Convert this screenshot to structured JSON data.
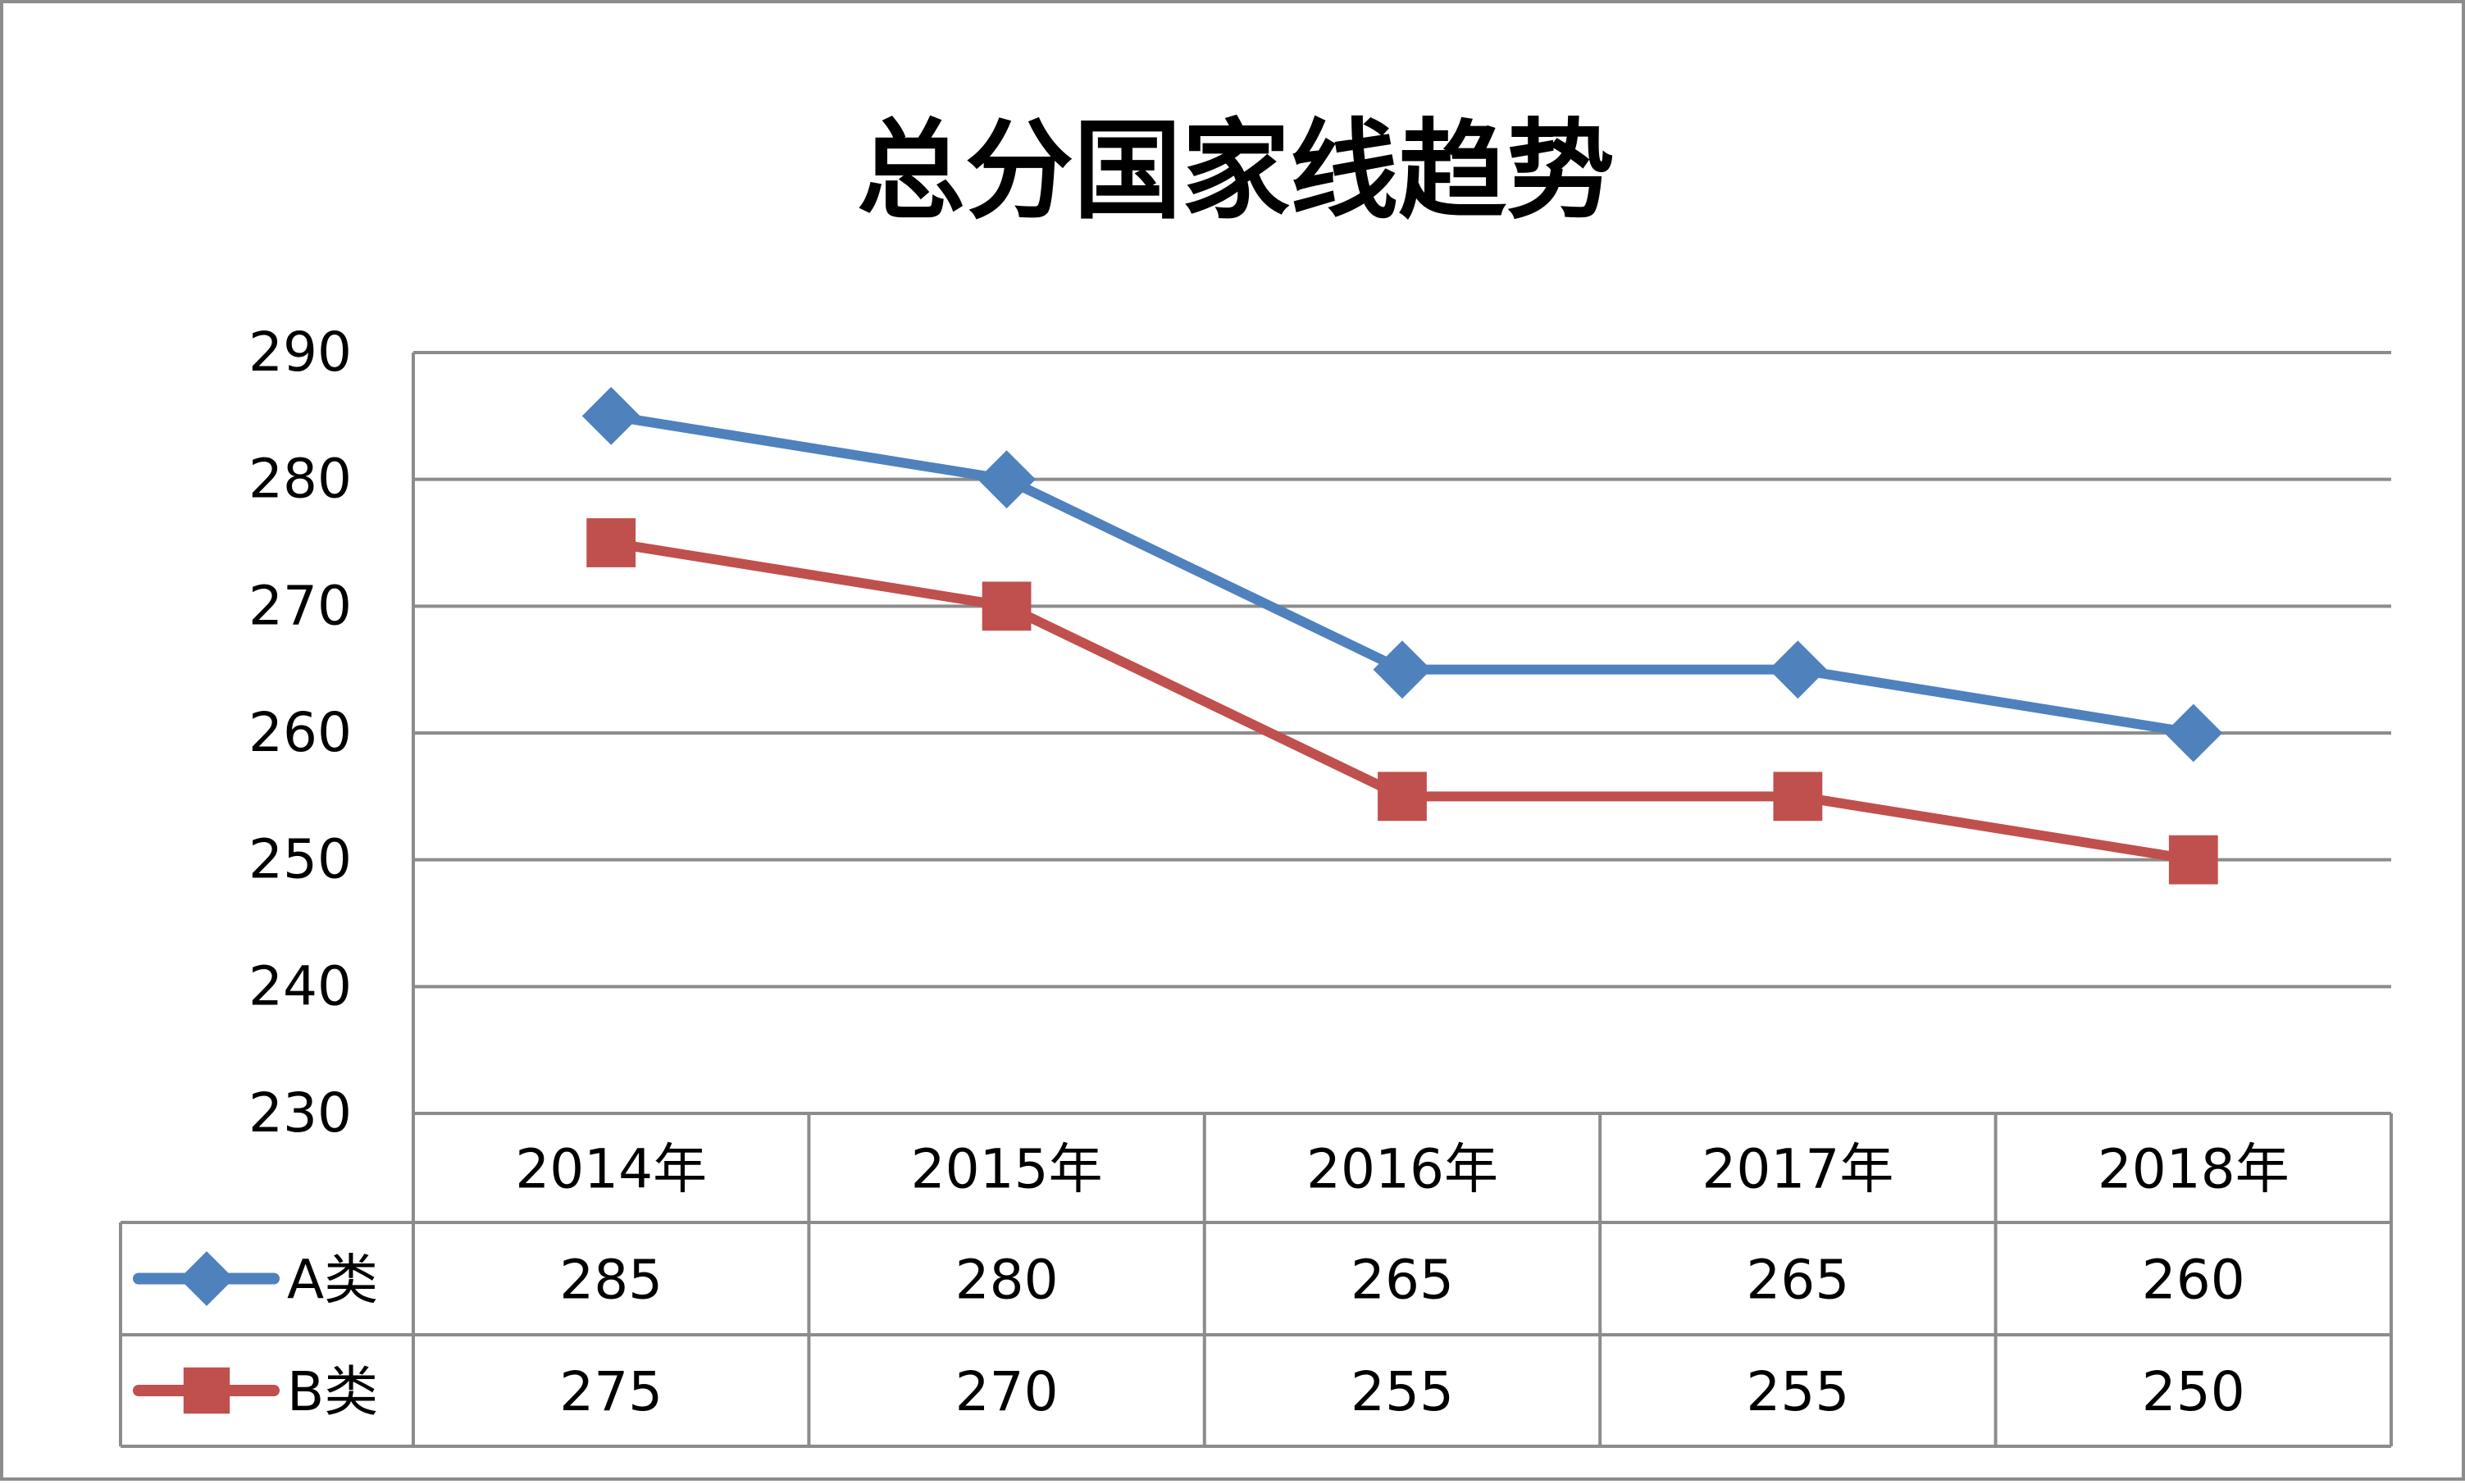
{
  "chart_data": {
    "type": "line",
    "title": "总分国家线趋势",
    "categories": [
      "2014年",
      "2015年",
      "2016年",
      "2017年",
      "2018年"
    ],
    "ylim": [
      230,
      290
    ],
    "yticks": [
      230,
      240,
      250,
      260,
      270,
      280,
      290
    ],
    "grid": true,
    "legend": "data-table",
    "series": [
      {
        "name": "A类",
        "values": [
          285,
          280,
          265,
          265,
          260
        ],
        "color": "#4f81bd",
        "marker": "diamond"
      },
      {
        "name": "B类",
        "values": [
          275,
          270,
          255,
          255,
          250
        ],
        "color": "#c0504d",
        "marker": "square"
      }
    ]
  }
}
